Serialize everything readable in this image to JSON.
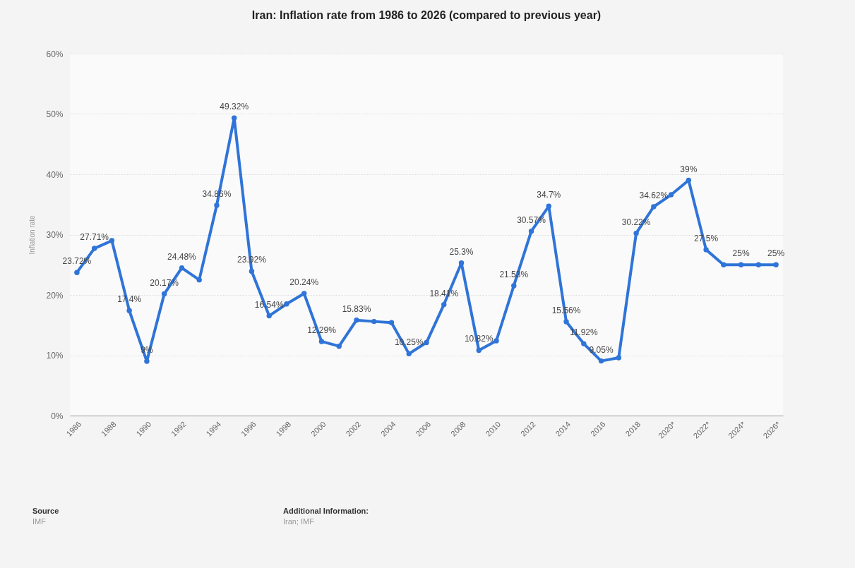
{
  "chart_data": {
    "type": "line",
    "title": "Iran: Inflation rate from 1986 to 2026 (compared to previous year)",
    "ylabel": "Inflation rate",
    "categories": [
      "1986",
      null,
      "1988",
      null,
      "1990",
      null,
      "1992",
      null,
      "1994",
      null,
      "1996",
      null,
      "1998",
      null,
      "2000",
      null,
      "2002",
      null,
      "2004",
      null,
      "2006",
      null,
      "2008",
      null,
      "2010",
      null,
      "2012",
      null,
      "2014",
      null,
      "2016",
      null,
      "2018",
      null,
      "2020*",
      null,
      "2022*",
      null,
      "2024*",
      null,
      "2026*"
    ],
    "series": [
      {
        "color": "#2f74d8",
        "values": [
          23.72,
          27.71,
          29.0,
          17.4,
          9,
          20.17,
          24.48,
          22.5,
          34.86,
          49.32,
          23.92,
          16.54,
          18.5,
          20.24,
          12.29,
          11.5,
          15.83,
          15.6,
          15.4,
          10.25,
          12.1,
          18.41,
          25.3,
          10.82,
          12.4,
          21.53,
          30.57,
          34.7,
          15.56,
          11.92,
          9.05,
          9.6,
          30.22,
          34.62,
          36.6,
          39,
          27.5,
          25,
          25,
          25,
          25
        ],
        "value_labels": [
          "23.72%",
          "27.71%",
          null,
          "17.4%",
          "9%",
          "20.17%",
          "24.48%",
          null,
          "34.86%",
          "49.32%",
          "23.92%",
          "16.54%",
          null,
          "20.24%",
          "12.29%",
          null,
          "15.83%",
          null,
          null,
          "10.25%",
          null,
          "18.41%",
          "25.3%",
          "10.82%",
          null,
          "21.53%",
          "30.57%",
          "34.7%",
          "15.56%",
          "11.92%",
          "9.05%",
          null,
          "30.22%",
          "34.62%",
          null,
          "39%",
          "27.5%",
          null,
          "25%",
          null,
          "25%"
        ]
      }
    ],
    "ylim": [
      0,
      60
    ],
    "yticks": [
      {
        "value": 0,
        "label": "0%"
      },
      {
        "value": 10,
        "label": "10%"
      },
      {
        "value": 20,
        "label": "20%"
      },
      {
        "value": 30,
        "label": "30%"
      },
      {
        "value": 40,
        "label": "40%"
      },
      {
        "value": 50,
        "label": "50%"
      },
      {
        "value": 60,
        "label": "60%"
      }
    ],
    "grid": "y",
    "marker": "circle",
    "line_style": "solid",
    "annotations": [
      "Source",
      "IMF",
      "Additional Information:",
      "Iran; IMF"
    ]
  }
}
